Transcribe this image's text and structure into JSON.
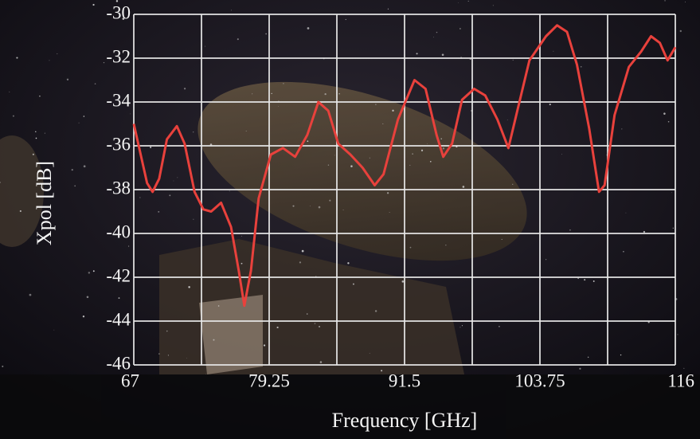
{
  "chart_data": {
    "type": "line",
    "x_label": "Frequency [GHz]",
    "y_label": "Xpol [dB]",
    "xlim": [
      67,
      116
    ],
    "xticks": [
      67,
      79.25,
      91.5,
      103.75,
      116
    ],
    "xgrid": [
      73.125,
      85.375,
      97.625,
      109.875
    ],
    "ylim": [
      -46,
      -30
    ],
    "yticks": [
      -46,
      -44,
      -42,
      -40,
      -38,
      -36,
      -34,
      -32,
      -30
    ],
    "grid": true,
    "series": [
      {
        "color": "#e8413c",
        "x": [
          67,
          68.2,
          68.7,
          69.3,
          70.0,
          70.9,
          71.6,
          72.5,
          73.3,
          74.0,
          74.9,
          75.8,
          76.5,
          77.0,
          77.6,
          78.3,
          79.4,
          80.5,
          81.6,
          82.7,
          83.7,
          84.6,
          85.5,
          86.6,
          87.7,
          88.8,
          89.6,
          90.9,
          92.4,
          93.4,
          94.4,
          95.0,
          95.8,
          96.7,
          97.8,
          98.8,
          99.9,
          100.9,
          101.7,
          102.8,
          104.3,
          105.3,
          106.2,
          107.1,
          108.2,
          109.1,
          109.6,
          110.5,
          111.8,
          112.9,
          113.8,
          114.6,
          115.3,
          116
        ],
        "values": [
          -35.0,
          -37.7,
          -38.1,
          -37.5,
          -35.7,
          -35.1,
          -35.9,
          -38.1,
          -38.9,
          -39.0,
          -38.6,
          -39.7,
          -41.7,
          -43.3,
          -41.7,
          -38.4,
          -36.4,
          -36.1,
          -36.5,
          -35.5,
          -34.0,
          -34.4,
          -35.9,
          -36.4,
          -37.0,
          -37.8,
          -37.3,
          -34.8,
          -33.0,
          -33.4,
          -35.5,
          -36.5,
          -35.9,
          -33.9,
          -33.4,
          -33.7,
          -34.8,
          -36.1,
          -34.4,
          -32.1,
          -31.0,
          -30.5,
          -30.8,
          -32.3,
          -35.2,
          -38.1,
          -37.8,
          -34.6,
          -32.4,
          -31.7,
          -31.0,
          -31.3,
          -32.1,
          -31.5
        ]
      }
    ]
  }
}
